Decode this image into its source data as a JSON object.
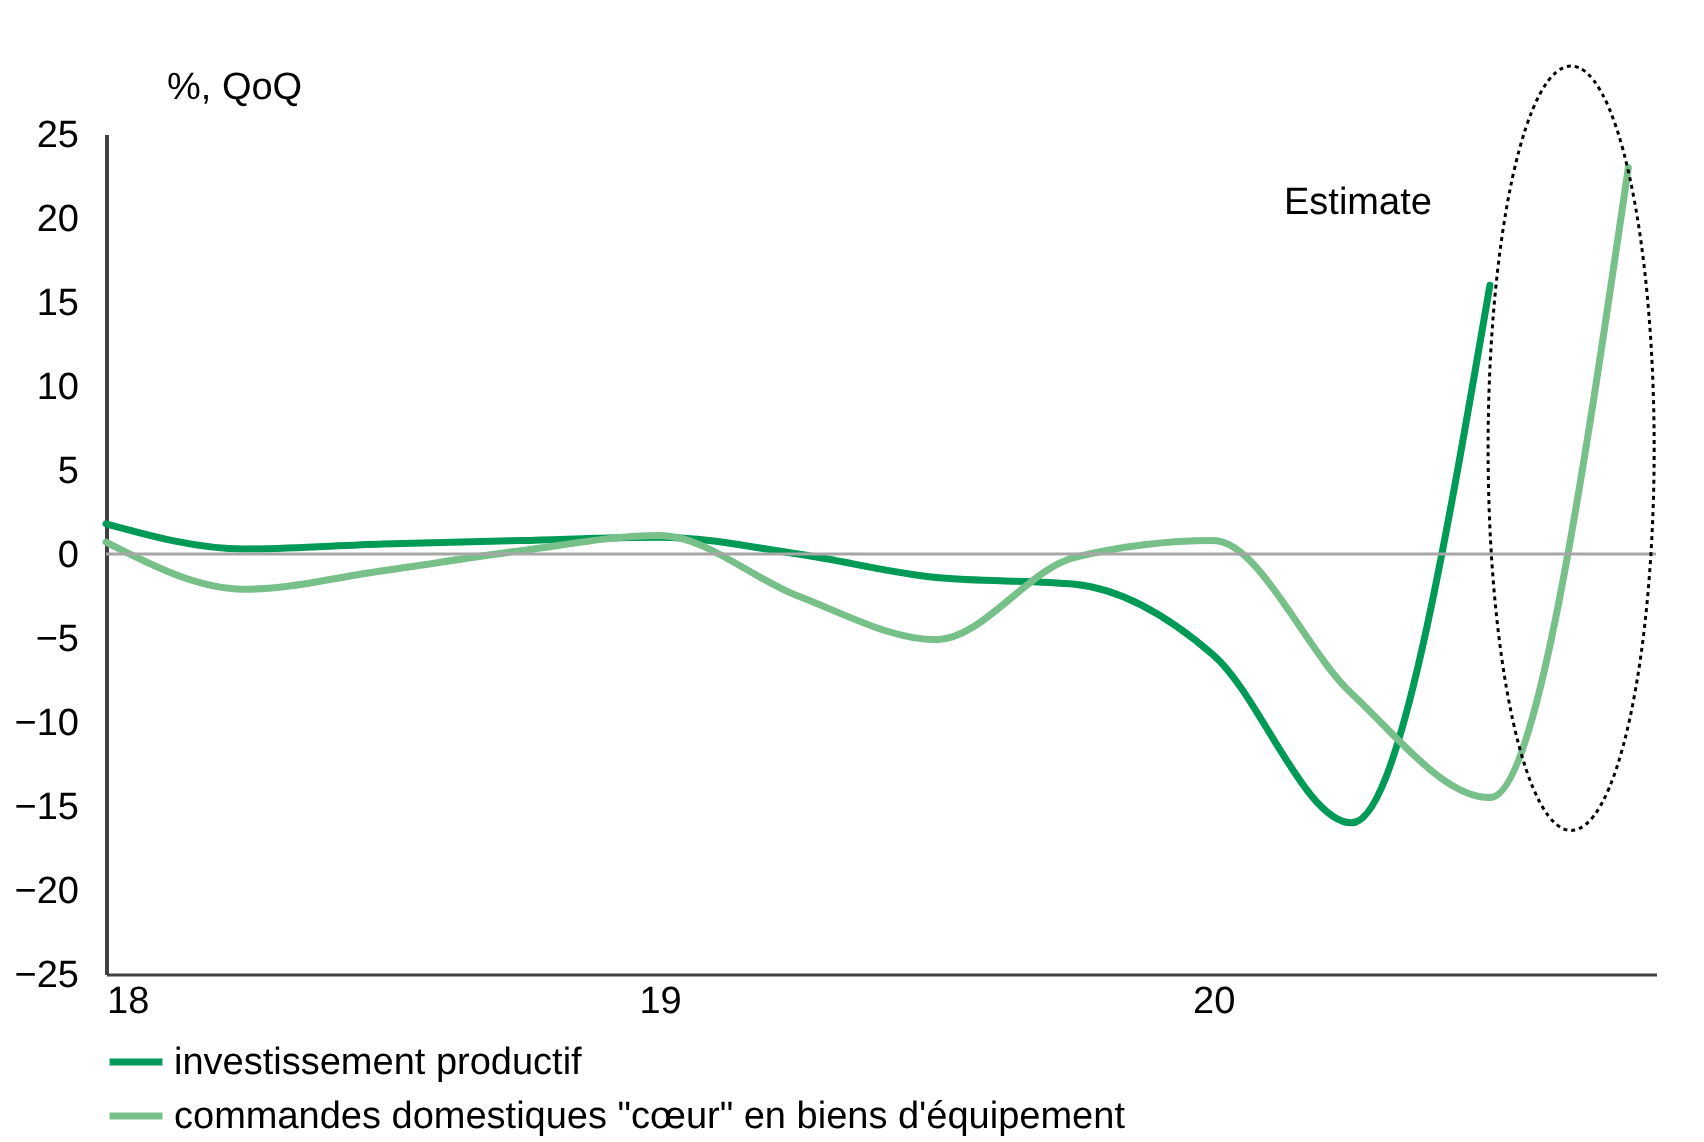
{
  "chart_data": {
    "type": "line",
    "ylabel": "%, QoQ",
    "x": [
      2018,
      2018.25,
      2018.5,
      2018.75,
      2019,
      2019.25,
      2019.5,
      2019.75,
      2020,
      2020.25,
      2020.5,
      2020.75
    ],
    "series": [
      {
        "name": "investissement productif",
        "color": "#009a57",
        "values": [
          1.8,
          0.3,
          0.6,
          0.8,
          1.0,
          0,
          -1.4,
          -1.8,
          -6,
          -16,
          16,
          null
        ]
      },
      {
        "name": "commandes domestiques \"cœur\" en biens d'équipement",
        "color": "#78c08a",
        "values": [
          0.7,
          -2.1,
          -1,
          0.2,
          1.1,
          -2.5,
          -5.1,
          -0.2,
          0.8,
          -8.3,
          -14.5,
          23
        ]
      }
    ],
    "xlim": [
      2018,
      2020.8
    ],
    "xticks": [
      {
        "value": 2018,
        "label": "18"
      },
      {
        "value": 2019,
        "label": "19"
      },
      {
        "value": 2020,
        "label": "20"
      }
    ],
    "ylim": [
      -25,
      25
    ],
    "yticks": [
      -25,
      -20,
      -15,
      -10,
      -5,
      0,
      5,
      10,
      15,
      20,
      25
    ],
    "ref_lines": [
      {
        "axis": "y",
        "value": 0,
        "color": "#a6a6a6"
      }
    ],
    "annotations": [
      "Estimate"
    ],
    "legend": "bottom",
    "grid": false,
    "marker": "none",
    "line_style": "solid"
  }
}
